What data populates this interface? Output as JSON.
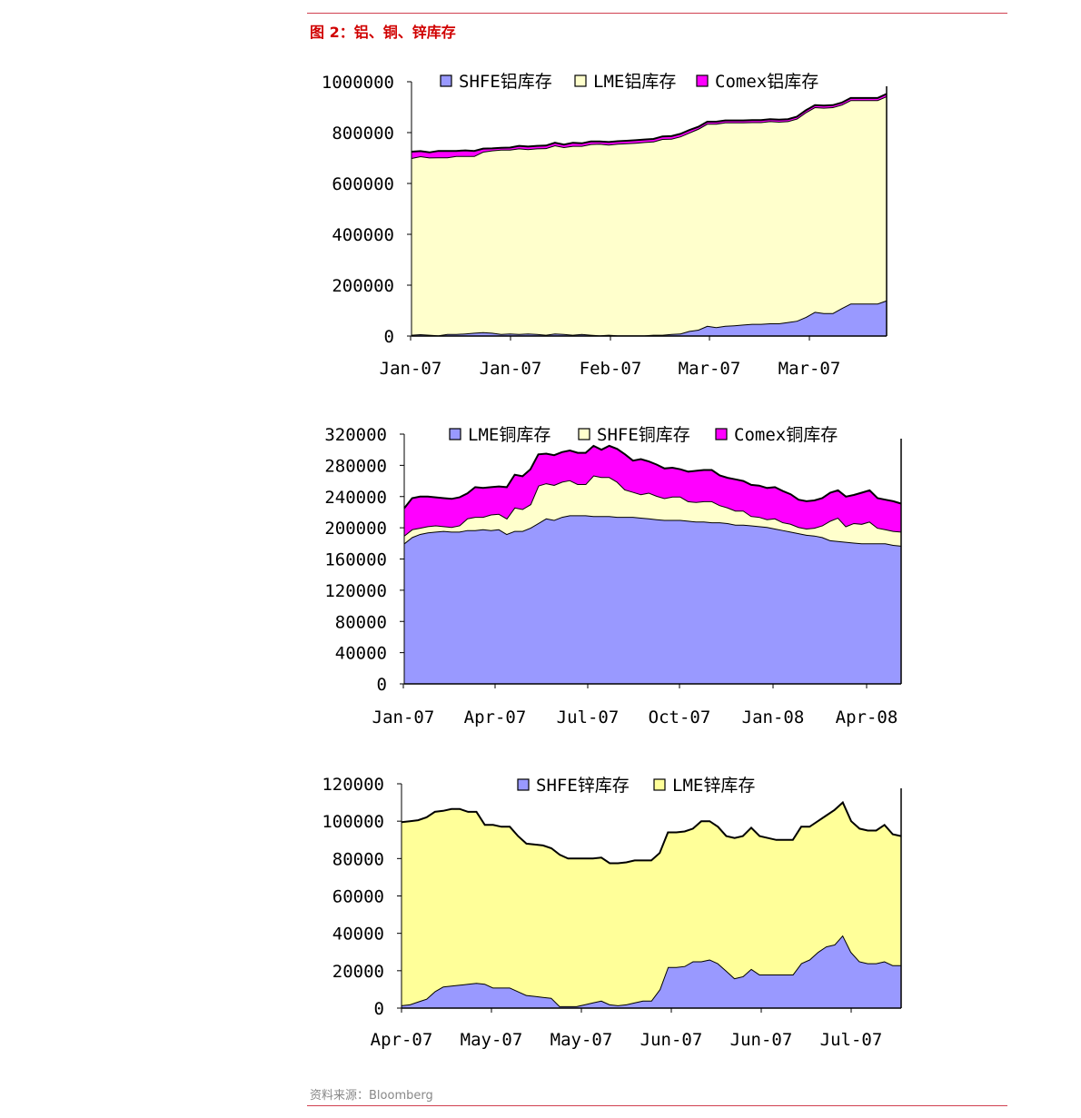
{
  "page": {
    "figure_title": "图 2：铝、铜、锌库存",
    "source": "资料来源：Bloomberg"
  },
  "colors": {
    "accent": "#d00000",
    "rule": "#d04050",
    "blue": "#9999ff",
    "yellow": "#ffffcc",
    "yellow_strong": "#ffff99",
    "magenta": "#ff00ff"
  },
  "chart_data": [
    {
      "type": "area",
      "stacked": true,
      "title": "",
      "ylim": [
        0,
        1000000
      ],
      "yticks": [
        "1000000",
        "800000",
        "600000",
        "400000",
        "200000",
        "0"
      ],
      "xticks": [
        "Jan-07",
        "Jan-07",
        "Feb-07",
        "Mar-07",
        "Mar-07"
      ],
      "legend": "top",
      "series": [
        {
          "name": "SHFE铝库存",
          "color": "#9999ff",
          "values": [
            5000,
            7000,
            5000,
            3000,
            8000,
            8000,
            10000,
            13000,
            15000,
            13000,
            8000,
            10000,
            8000,
            10000,
            8000,
            5000,
            10000,
            8000,
            5000,
            8000,
            5000,
            3000,
            5000,
            3000,
            3000,
            3000,
            3000,
            5000,
            5000,
            8000,
            10000,
            20000,
            25000,
            40000,
            35000,
            40000,
            42000,
            45000,
            48000,
            48000,
            50000,
            50000,
            55000,
            60000,
            75000,
            95000,
            90000,
            90000,
            110000,
            128000,
            128000,
            128000,
            128000,
            140000
          ]
        },
        {
          "name": "LME铝库存",
          "color": "#ffffcc",
          "values": [
            695000,
            700000,
            697000,
            700000,
            695000,
            700000,
            698000,
            695000,
            710000,
            717000,
            725000,
            723000,
            730000,
            725000,
            730000,
            734000,
            740000,
            735000,
            743000,
            740000,
            750000,
            753000,
            748000,
            753000,
            755000,
            757000,
            760000,
            760000,
            770000,
            768000,
            775000,
            780000,
            790000,
            795000,
            800000,
            800000,
            798000,
            795000,
            793000,
            793000,
            795000,
            793000,
            790000,
            795000,
            805000,
            805000,
            808000,
            810000,
            800000,
            800000,
            800000,
            800000,
            800000,
            803000
          ]
        },
        {
          "name": "Comex铝库存",
          "color": "#ff00ff",
          "values": [
            25000,
            20000,
            20000,
            25000,
            25000,
            20000,
            22000,
            20000,
            12000,
            8000,
            7000,
            8000,
            10000,
            10000,
            10000,
            10000,
            10000,
            10000,
            12000,
            10000,
            10000,
            9000,
            10000,
            10000,
            10000,
            10000,
            10000,
            10000,
            10000,
            10000,
            10000,
            10000,
            8000,
            8000,
            8000,
            8000,
            8000,
            8000,
            8000,
            8000,
            8000,
            8000,
            8000,
            8000,
            8000,
            8000,
            8000,
            8000,
            8000,
            8000,
            8000,
            8000,
            8000,
            9000
          ]
        }
      ]
    },
    {
      "type": "area",
      "stacked": true,
      "title": "",
      "ylim": [
        0,
        320000
      ],
      "yticks": [
        "320000",
        "280000",
        "240000",
        "200000",
        "160000",
        "120000",
        "80000",
        "40000",
        "0"
      ],
      "xticks": [
        "Jan-07",
        "Apr-07",
        "Jul-07",
        "Oct-07",
        "Jan-08",
        "Apr-08"
      ],
      "legend": "top",
      "series": [
        {
          "name": "LME铜库存",
          "color": "#9999ff",
          "values": [
            180000,
            188000,
            192000,
            194000,
            195000,
            196000,
            195000,
            195000,
            197000,
            197000,
            198000,
            197000,
            198000,
            192000,
            196000,
            196000,
            200000,
            206000,
            212000,
            210000,
            214000,
            216000,
            216000,
            216000,
            215000,
            215000,
            215000,
            214000,
            214000,
            214000,
            213000,
            212000,
            211000,
            210000,
            210000,
            210000,
            209000,
            208000,
            208000,
            207000,
            207000,
            206000,
            204000,
            204000,
            203000,
            202000,
            201000,
            199000,
            197000,
            195000,
            193000,
            191000,
            190000,
            188000,
            184000,
            183000,
            182000,
            181000,
            180000,
            180000,
            180000,
            180000,
            178000,
            177000
          ]
        },
        {
          "name": "SHFE铜库存",
          "color": "#ffffcc",
          "values": [
            10000,
            10000,
            8000,
            8000,
            8000,
            6000,
            6000,
            8000,
            15000,
            17000,
            16000,
            20000,
            20000,
            20000,
            30000,
            28000,
            30000,
            48000,
            45000,
            45000,
            45000,
            45000,
            40000,
            40000,
            52000,
            50000,
            50000,
            45000,
            35000,
            32000,
            30000,
            33000,
            30000,
            28000,
            30000,
            30000,
            25000,
            25000,
            26000,
            27000,
            22000,
            20000,
            18000,
            18000,
            12000,
            12000,
            10000,
            13000,
            10000,
            10000,
            8000,
            8000,
            10000,
            15000,
            25000,
            30000,
            20000,
            25000,
            25000,
            28000,
            20000,
            18000,
            18000,
            18000
          ]
        },
        {
          "name": "Comex铜库存",
          "color": "#ff00ff",
          "values": [
            35000,
            40000,
            40000,
            38000,
            36000,
            36000,
            36000,
            36000,
            32000,
            38000,
            37000,
            35000,
            35000,
            40000,
            42000,
            42000,
            45000,
            40000,
            38000,
            38000,
            38000,
            38000,
            40000,
            40000,
            38000,
            35000,
            40000,
            42000,
            45000,
            40000,
            45000,
            40000,
            40000,
            38000,
            37000,
            35000,
            38000,
            40000,
            40000,
            40000,
            38000,
            38000,
            40000,
            38000,
            40000,
            40000,
            40000,
            40000,
            40000,
            38000,
            35000,
            35000,
            35000,
            35000,
            36000,
            35000,
            38000,
            36000,
            40000,
            40000,
            38000,
            38000,
            38000,
            36000
          ]
        }
      ]
    },
    {
      "type": "area",
      "stacked": true,
      "title": "",
      "ylim": [
        0,
        120000
      ],
      "yticks": [
        "120000",
        "100000",
        "80000",
        "60000",
        "40000",
        "20000",
        "0"
      ],
      "xticks": [
        "Apr-07",
        "May-07",
        "May-07",
        "Jun-07",
        "Jun-07",
        "Jul-07"
      ],
      "legend": "top",
      "series": [
        {
          "name": "SHFE锌库存",
          "color": "#9999ff",
          "values": [
            1500,
            2000,
            3500,
            5000,
            9000,
            11500,
            12000,
            12500,
            13000,
            13500,
            13000,
            11000,
            11000,
            11000,
            9000,
            7000,
            6500,
            6000,
            5500,
            1000,
            1000,
            1000,
            2000,
            3000,
            4000,
            2000,
            1500,
            2000,
            3000,
            4000,
            4000,
            10000,
            22000,
            22000,
            22500,
            25000,
            25000,
            26000,
            24000,
            20000,
            16000,
            17000,
            21000,
            18000,
            18000,
            18000,
            18000,
            18000,
            24000,
            26000,
            30000,
            33000,
            34000,
            39000,
            30000,
            25000,
            24000,
            24000,
            25000,
            23000,
            23000
          ]
        },
        {
          "name": "LME锌库存",
          "color": "#ffff99",
          "values": [
            98000,
            98000,
            97000,
            97000,
            96000,
            94000,
            94500,
            94000,
            92000,
            91500,
            85000,
            87000,
            86000,
            86000,
            83000,
            81000,
            81000,
            81000,
            80000,
            81000,
            79000,
            79000,
            78000,
            77000,
            76500,
            75500,
            76000,
            76000,
            76000,
            75000,
            75000,
            73000,
            72000,
            72000,
            72000,
            71000,
            75000,
            74000,
            73000,
            72000,
            75000,
            75000,
            75500,
            74000,
            73000,
            72000,
            72000,
            72000,
            73000,
            71000,
            70000,
            70000,
            72000,
            71000,
            70000,
            71000,
            71000,
            71000,
            73000,
            70000,
            69000
          ]
        }
      ]
    }
  ]
}
